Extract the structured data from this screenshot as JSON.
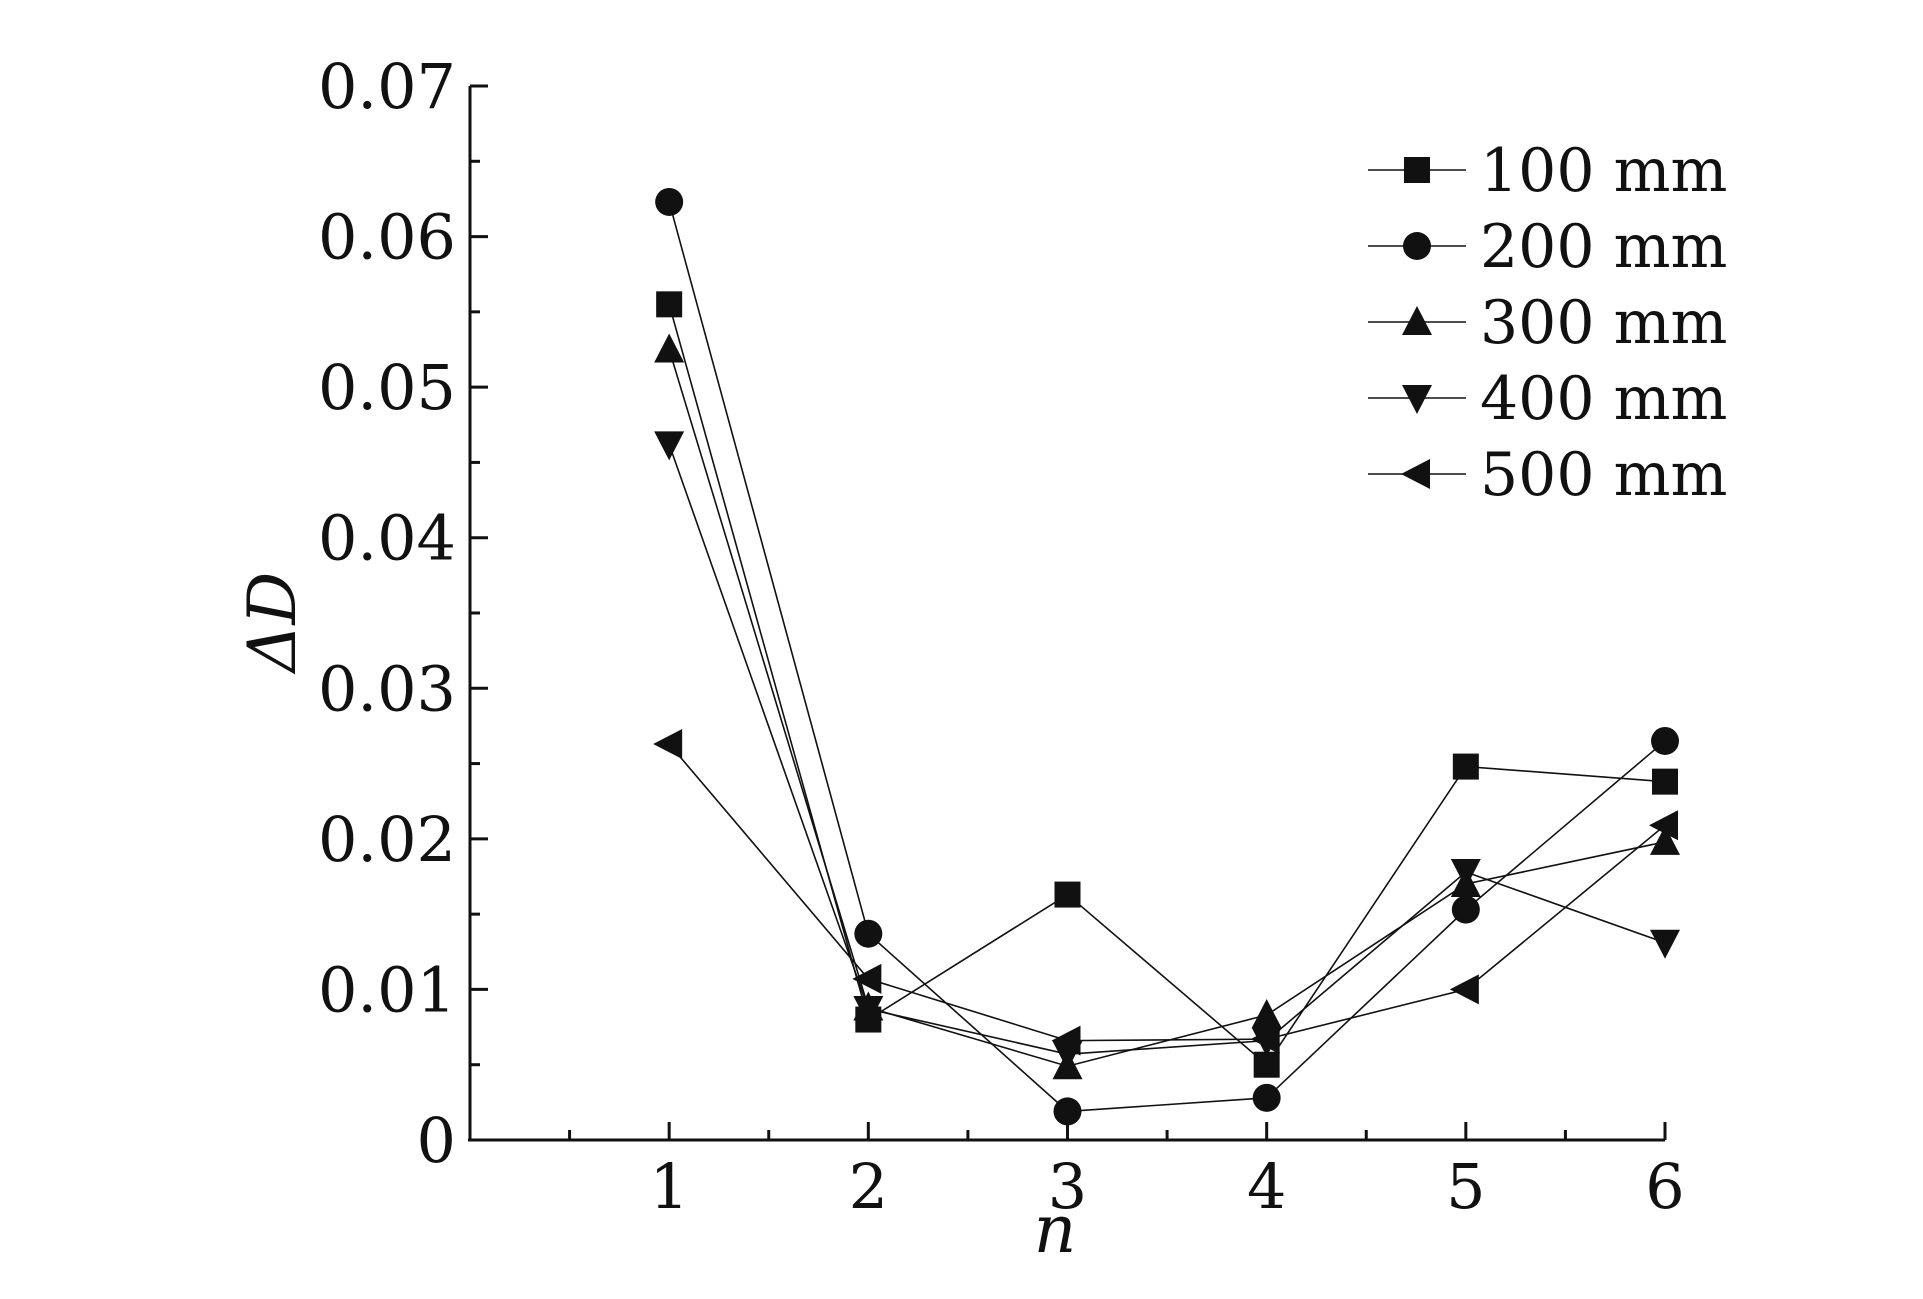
{
  "chart_data": {
    "type": "line",
    "xlabel": "n",
    "ylabel": "ΔD",
    "x": [
      1,
      2,
      3,
      4,
      5,
      6
    ],
    "xlim": [
      0,
      6
    ],
    "ylim": [
      0,
      0.07
    ],
    "x_ticks": [
      "1",
      "2",
      "3",
      "4",
      "5",
      "6"
    ],
    "y_ticks": [
      "0",
      "0.01",
      "0.02",
      "0.03",
      "0.04",
      "0.05",
      "0.06",
      "0.07"
    ],
    "grid": false,
    "legend_position": "top-right",
    "series": [
      {
        "name": "100 mm",
        "marker": "square",
        "values": [
          0.0555,
          0.008,
          0.0163,
          0.005,
          0.0248,
          0.0238
        ]
      },
      {
        "name": "200 mm",
        "marker": "circle",
        "values": [
          0.0623,
          0.0137,
          0.0019,
          0.0028,
          0.0153,
          0.0265
        ]
      },
      {
        "name": "300 mm",
        "marker": "triangle-up",
        "values": [
          0.0525,
          0.0088,
          0.0049,
          0.0083,
          0.017,
          0.0198
        ]
      },
      {
        "name": "400 mm",
        "marker": "triangle-down",
        "values": [
          0.0462,
          0.0087,
          0.0057,
          0.0066,
          0.0178,
          0.0131
        ]
      },
      {
        "name": "500 mm",
        "marker": "triangle-left",
        "values": [
          0.0263,
          0.0107,
          0.0066,
          0.0067,
          0.01,
          0.0209
        ]
      }
    ]
  }
}
